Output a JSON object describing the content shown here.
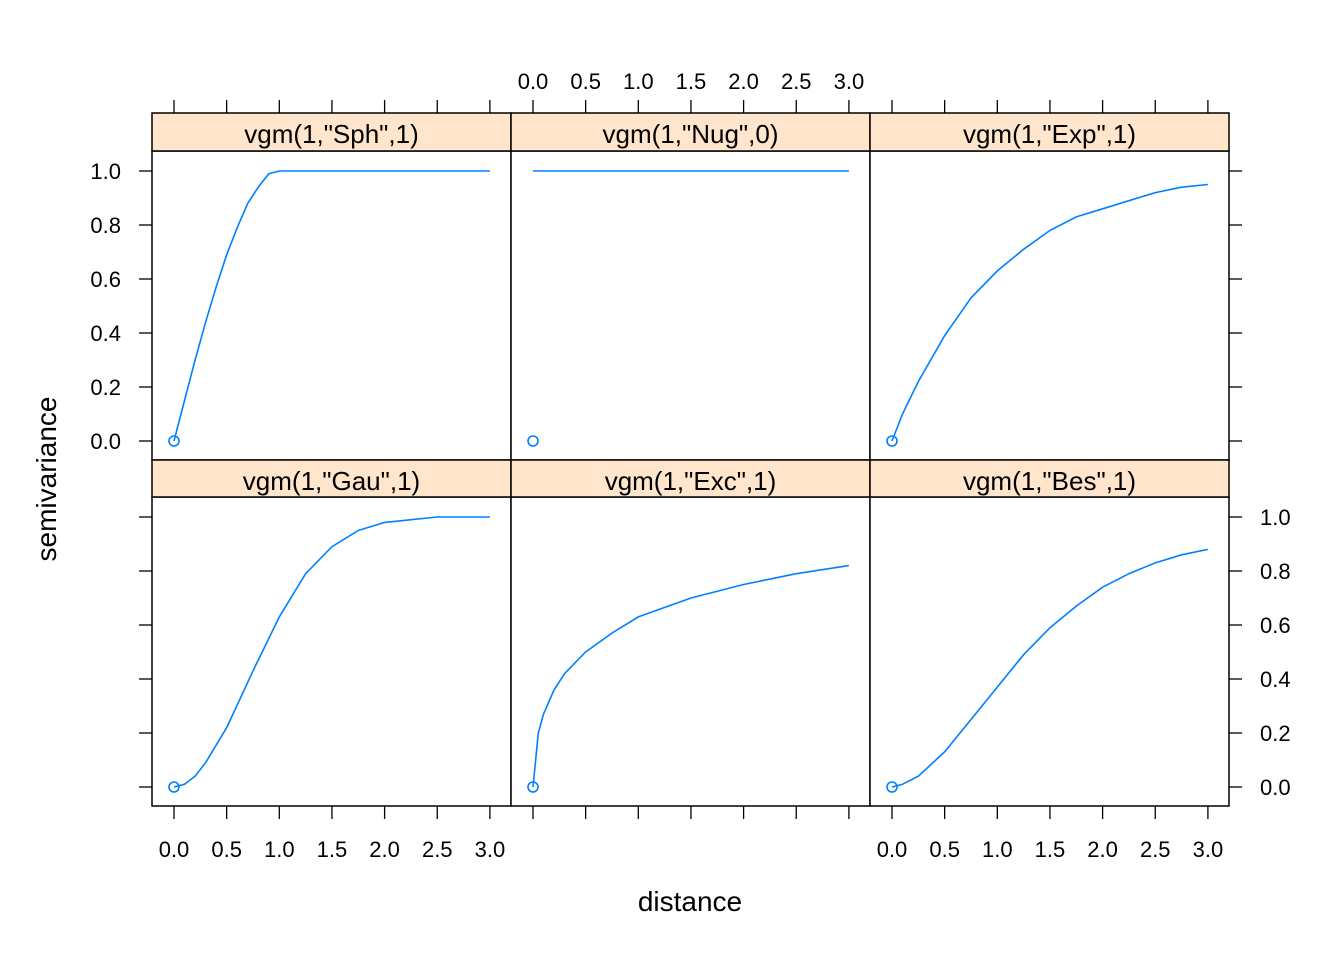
{
  "chart_data": {
    "type": "line",
    "layout": "lattice 3x2",
    "xlabel": "distance",
    "ylabel": "semivariance",
    "xlim": [
      -0.15,
      3.25
    ],
    "ylim": [
      -0.07,
      1.07
    ],
    "x_ticks": [
      0.0,
      0.5,
      1.0,
      1.5,
      2.0,
      2.5,
      3.0
    ],
    "x_tick_labels": [
      "0.0",
      "0.5",
      "1.0",
      "1.5",
      "2.0",
      "2.5",
      "3.0"
    ],
    "y_ticks": [
      0.0,
      0.2,
      0.4,
      0.6,
      0.8,
      1.0
    ],
    "y_tick_labels": [
      "0.0",
      "0.2",
      "0.4",
      "0.6",
      "0.8",
      "1.0"
    ],
    "strip_color": "#FFE5CC",
    "line_color": "#0080FF",
    "panels": [
      {
        "title": "vgm(1,\"Sph\",1)",
        "x": [
          0,
          0.1,
          0.2,
          0.3,
          0.4,
          0.5,
          0.6,
          0.7,
          0.8,
          0.9,
          1.0,
          1.5,
          2.0,
          2.5,
          3.0
        ],
        "y": [
          0,
          0.15,
          0.3,
          0.44,
          0.57,
          0.69,
          0.79,
          0.88,
          0.94,
          0.99,
          1.0,
          1.0,
          1.0,
          1.0,
          1.0
        ],
        "point": [
          0,
          0
        ]
      },
      {
        "title": "vgm(1,\"Nug\",0)",
        "x": [
          0,
          3.0
        ],
        "y": [
          1.0,
          1.0
        ],
        "point": [
          0,
          0
        ]
      },
      {
        "title": "vgm(1,\"Exp\",1)",
        "x": [
          0,
          0.1,
          0.25,
          0.5,
          0.75,
          1.0,
          1.25,
          1.5,
          1.75,
          2.0,
          2.25,
          2.5,
          2.75,
          3.0
        ],
        "y": [
          0,
          0.1,
          0.22,
          0.39,
          0.53,
          0.63,
          0.71,
          0.78,
          0.83,
          0.86,
          0.89,
          0.92,
          0.94,
          0.95
        ],
        "point": [
          0,
          0
        ]
      },
      {
        "title": "vgm(1,\"Gau\",1)",
        "x": [
          0,
          0.1,
          0.2,
          0.3,
          0.5,
          0.75,
          1.0,
          1.25,
          1.5,
          1.75,
          2.0,
          2.5,
          3.0
        ],
        "y": [
          0,
          0.01,
          0.04,
          0.09,
          0.22,
          0.43,
          0.63,
          0.79,
          0.89,
          0.95,
          0.98,
          1.0,
          1.0
        ],
        "point": [
          0,
          0
        ]
      },
      {
        "title": "vgm(1,\"Exc\",1)",
        "x": [
          0,
          0.05,
          0.1,
          0.2,
          0.3,
          0.5,
          0.75,
          1.0,
          1.5,
          2.0,
          2.5,
          3.0
        ],
        "y": [
          0,
          0.2,
          0.27,
          0.36,
          0.42,
          0.5,
          0.57,
          0.63,
          0.7,
          0.75,
          0.79,
          0.82
        ],
        "point": [
          0,
          0
        ]
      },
      {
        "title": "vgm(1,\"Bes\",1)",
        "x": [
          0,
          0.1,
          0.25,
          0.5,
          0.75,
          1.0,
          1.25,
          1.5,
          1.75,
          2.0,
          2.25,
          2.5,
          2.75,
          3.0
        ],
        "y": [
          0,
          0.01,
          0.04,
          0.13,
          0.25,
          0.37,
          0.49,
          0.59,
          0.67,
          0.74,
          0.79,
          0.83,
          0.86,
          0.88
        ],
        "point": [
          0,
          0
        ]
      }
    ]
  }
}
